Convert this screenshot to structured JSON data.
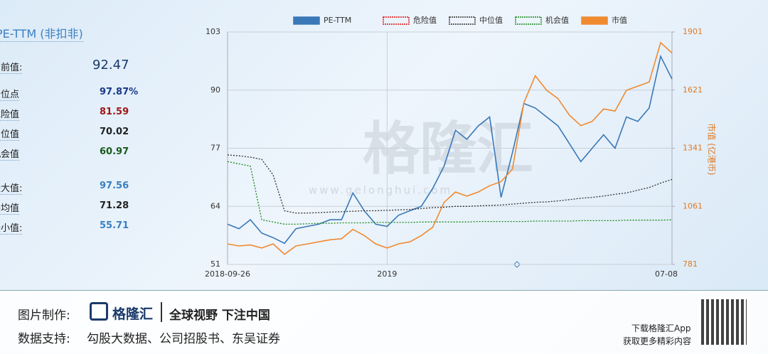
{
  "panel": {
    "title": "PE-TTM (非扣非)",
    "stats": [
      {
        "label": "当前值:",
        "value": "92.47",
        "color": "#1a3a6a"
      },
      {
        "label": "分位点",
        "value": "97.87%",
        "color": "#1a3a8a"
      },
      {
        "label": "危险值",
        "value": "81.59",
        "color": "#a01818"
      },
      {
        "label": "中位值",
        "value": "70.02",
        "color": "#222222"
      },
      {
        "label": "机会值",
        "value": "60.97",
        "color": "#1a5a1a"
      },
      {
        "label": "最大值:",
        "value": "97.56",
        "color": "#3a7fc0"
      },
      {
        "label": "平均值",
        "value": "71.28",
        "color": "#222222"
      },
      {
        "label": "最小值:",
        "value": "55.71",
        "color": "#3a7fc0"
      }
    ]
  },
  "chart_data": {
    "type": "line",
    "categories": [
      "2018-09-26",
      null,
      null,
      null,
      null,
      null,
      null,
      null,
      null,
      null,
      null,
      null,
      null,
      null,
      "2019",
      null,
      null,
      null,
      null,
      null,
      null,
      null,
      null,
      null,
      null,
      null,
      null,
      null,
      null,
      null,
      null,
      null,
      null,
      null,
      null,
      null,
      null,
      null,
      null,
      "07-08"
    ],
    "series": [
      {
        "name": "PE-TTM",
        "color": "#3a78b8",
        "values": [
          60,
          59,
          61,
          58,
          57,
          55.7,
          59,
          59.5,
          60,
          61,
          61,
          67,
          63,
          60,
          59.5,
          62,
          63,
          64,
          68,
          73,
          81,
          79,
          82,
          84,
          66,
          76,
          87,
          86,
          84,
          82,
          78,
          74,
          77,
          80,
          77,
          84,
          83,
          86,
          97.56,
          92.47
        ]
      },
      {
        "name": "危险值",
        "color": "#e01010",
        "values": [
          null,
          null,
          null,
          null,
          null,
          null,
          null,
          null,
          null,
          null,
          null,
          null,
          null,
          null,
          null,
          null,
          null,
          null,
          null,
          null,
          null,
          null,
          null,
          null,
          null,
          null,
          null,
          null,
          null,
          null,
          null,
          null,
          null,
          null,
          null,
          null,
          null,
          null,
          null,
          null
        ]
      },
      {
        "name": "中位值",
        "color": "#333333",
        "dash": true,
        "values": [
          75.5,
          75.3,
          75,
          74.5,
          71,
          63,
          62.5,
          62.5,
          62.6,
          62.7,
          62.8,
          62.9,
          63,
          63,
          63.1,
          63.2,
          63.3,
          63.5,
          63.7,
          63.8,
          64,
          64,
          64.1,
          64.2,
          64.3,
          64.5,
          64.7,
          64.9,
          65,
          65.2,
          65.5,
          65.8,
          66,
          66.3,
          66.7,
          67,
          67.6,
          68.2,
          69.2,
          70.02
        ]
      },
      {
        "name": "机会值",
        "color": "#1a8a1a",
        "dash": true,
        "values": [
          74,
          73.5,
          73,
          61,
          60.5,
          60,
          60,
          60.1,
          60.2,
          60.2,
          60.3,
          60.3,
          60.3,
          60.4,
          60.4,
          60.4,
          60.4,
          60.5,
          60.5,
          60.5,
          60.5,
          60.5,
          60.6,
          60.6,
          60.6,
          60.6,
          60.6,
          60.7,
          60.7,
          60.7,
          60.7,
          60.8,
          60.8,
          60.8,
          60.8,
          60.9,
          60.9,
          60.9,
          60.9,
          60.97
        ]
      },
      {
        "name": "市值",
        "color": "#f08a30",
        "axis": "y2",
        "values": [
          880,
          870,
          875,
          860,
          880,
          830,
          870,
          880,
          890,
          900,
          905,
          950,
          920,
          880,
          860,
          880,
          890,
          920,
          960,
          1080,
          1130,
          1110,
          1130,
          1160,
          1180,
          1240,
          1560,
          1690,
          1620,
          1580,
          1500,
          1450,
          1470,
          1530,
          1520,
          1620,
          1640,
          1660,
          1850,
          1800
        ]
      }
    ],
    "ylim": [
      51,
      103
    ],
    "yticks": [
      51,
      64,
      77,
      90,
      103
    ],
    "y2lim": [
      781,
      1901
    ],
    "y2ticks": [
      781,
      1061,
      1341,
      1621,
      1901
    ],
    "y2label": "市值 (亿港币)",
    "grid": true,
    "watermark": "格隆汇",
    "watermark_url": "www.gelonghui.com"
  },
  "footer": {
    "made_by": "图片制作:",
    "logo": "格隆汇",
    "slogan": "全球视野 下注中国",
    "source_label": "数据支持:",
    "source": "勾股大数据、公司招股书、东吴证券",
    "app_line1": "下载格隆汇App",
    "app_line2": "获取更多精彩内容"
  }
}
